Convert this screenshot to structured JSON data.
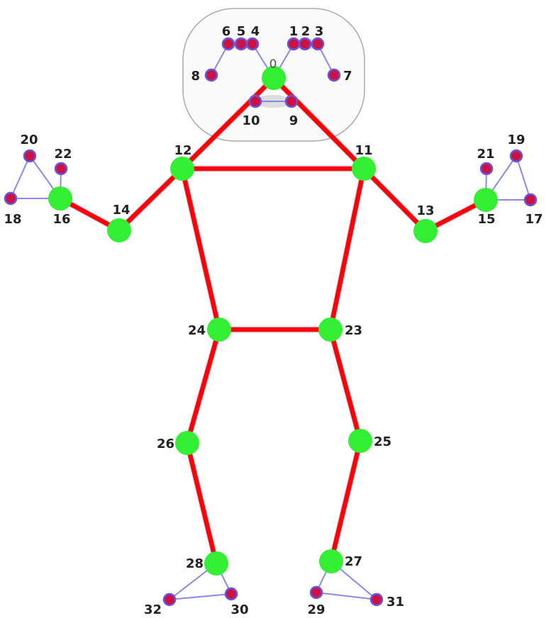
{
  "colors": {
    "skeleton": "#ff0000",
    "major_joint": "#33ee33",
    "minor_joint_fill": "#cc1144",
    "minor_joint_ring": "#6655dd",
    "guide_line": "#8888ee",
    "head_outline": "#aaaaaa",
    "head_fill": "#fafafa",
    "label": "#222222"
  },
  "landmarks": [
    {
      "id": 0,
      "label": "0",
      "kind": "major"
    },
    {
      "id": 1,
      "label": "1",
      "kind": "minor"
    },
    {
      "id": 2,
      "label": "2",
      "kind": "minor"
    },
    {
      "id": 3,
      "label": "3",
      "kind": "minor"
    },
    {
      "id": 4,
      "label": "4",
      "kind": "minor"
    },
    {
      "id": 5,
      "label": "5",
      "kind": "minor"
    },
    {
      "id": 6,
      "label": "6",
      "kind": "minor"
    },
    {
      "id": 7,
      "label": "7",
      "kind": "minor"
    },
    {
      "id": 8,
      "label": "8",
      "kind": "minor"
    },
    {
      "id": 9,
      "label": "9",
      "kind": "minor"
    },
    {
      "id": 10,
      "label": "10",
      "kind": "minor"
    },
    {
      "id": 11,
      "label": "11",
      "kind": "major"
    },
    {
      "id": 12,
      "label": "12",
      "kind": "major"
    },
    {
      "id": 13,
      "label": "13",
      "kind": "major"
    },
    {
      "id": 14,
      "label": "14",
      "kind": "major"
    },
    {
      "id": 15,
      "label": "15",
      "kind": "major"
    },
    {
      "id": 16,
      "label": "16",
      "kind": "major"
    },
    {
      "id": 17,
      "label": "17",
      "kind": "minor"
    },
    {
      "id": 18,
      "label": "18",
      "kind": "minor"
    },
    {
      "id": 19,
      "label": "19",
      "kind": "minor"
    },
    {
      "id": 20,
      "label": "20",
      "kind": "minor"
    },
    {
      "id": 21,
      "label": "21",
      "kind": "minor"
    },
    {
      "id": 22,
      "label": "22",
      "kind": "minor"
    },
    {
      "id": 23,
      "label": "23",
      "kind": "major"
    },
    {
      "id": 24,
      "label": "24",
      "kind": "major"
    },
    {
      "id": 25,
      "label": "25",
      "kind": "major"
    },
    {
      "id": 26,
      "label": "26",
      "kind": "major"
    },
    {
      "id": 27,
      "label": "27",
      "kind": "major"
    },
    {
      "id": 28,
      "label": "28",
      "kind": "major"
    },
    {
      "id": 29,
      "label": "29",
      "kind": "minor"
    },
    {
      "id": 30,
      "label": "30",
      "kind": "minor"
    },
    {
      "id": 31,
      "label": "31",
      "kind": "minor"
    },
    {
      "id": 32,
      "label": "32",
      "kind": "minor"
    }
  ],
  "skeleton_connections": [
    [
      0,
      12
    ],
    [
      0,
      11
    ],
    [
      12,
      11
    ],
    [
      12,
      14
    ],
    [
      14,
      16
    ],
    [
      11,
      13
    ],
    [
      13,
      15
    ],
    [
      12,
      24
    ],
    [
      11,
      23
    ],
    [
      24,
      23
    ],
    [
      24,
      26
    ],
    [
      26,
      28
    ],
    [
      23,
      25
    ],
    [
      25,
      27
    ]
  ],
  "guide_connections": [
    [
      0,
      1
    ],
    [
      1,
      2
    ],
    [
      2,
      3
    ],
    [
      3,
      7
    ],
    [
      0,
      4
    ],
    [
      4,
      5
    ],
    [
      5,
      6
    ],
    [
      6,
      8
    ],
    [
      9,
      10
    ],
    [
      16,
      18
    ],
    [
      16,
      20
    ],
    [
      18,
      20
    ],
    [
      16,
      22
    ],
    [
      15,
      17
    ],
    [
      15,
      19
    ],
    [
      17,
      19
    ],
    [
      15,
      21
    ],
    [
      28,
      30
    ],
    [
      28,
      32
    ],
    [
      30,
      32
    ],
    [
      27,
      29
    ],
    [
      27,
      31
    ],
    [
      29,
      31
    ]
  ]
}
